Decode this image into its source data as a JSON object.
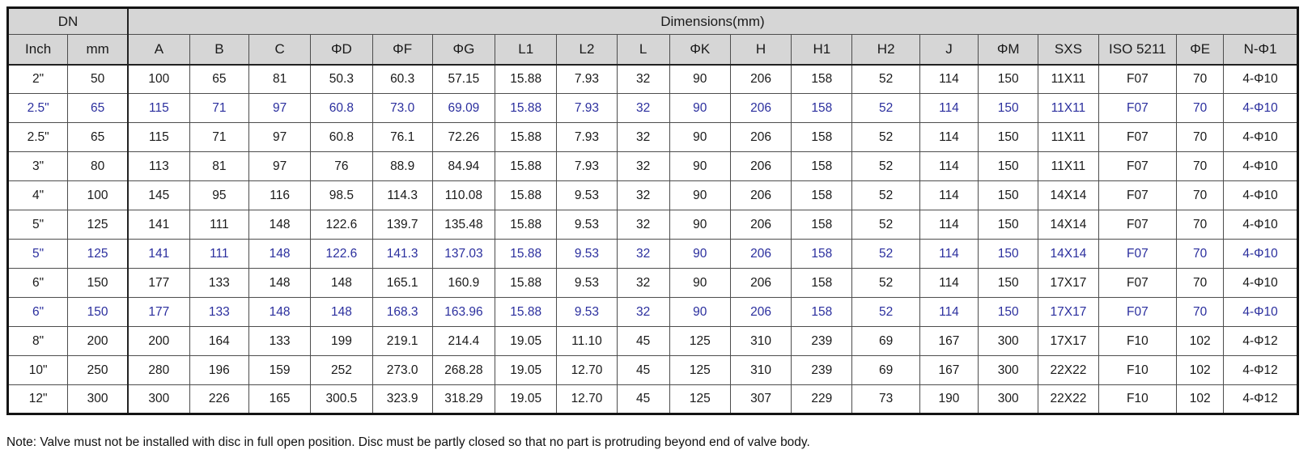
{
  "table": {
    "header_groups": [
      {
        "label": "DN",
        "colspan": 2
      },
      {
        "label": "Dimensions(mm)",
        "colspan": 19
      }
    ],
    "columns": [
      "Inch",
      "mm",
      "A",
      "B",
      "C",
      "ΦD",
      "ΦF",
      "ΦG",
      "L1",
      "L2",
      "L",
      "ΦK",
      "H",
      "H1",
      "H2",
      "J",
      "ΦM",
      "SXS",
      "ISO 5211",
      "ΦE",
      "N-Φ1"
    ],
    "rows": [
      {
        "highlight": false,
        "cells": [
          "2\"",
          "50",
          "100",
          "65",
          "81",
          "50.3",
          "60.3",
          "57.15",
          "15.88",
          "7.93",
          "32",
          "90",
          "206",
          "158",
          "52",
          "114",
          "150",
          "11X11",
          "F07",
          "70",
          "4-Φ10"
        ]
      },
      {
        "highlight": true,
        "cells": [
          "2.5\"",
          "65",
          "115",
          "71",
          "97",
          "60.8",
          "73.0",
          "69.09",
          "15.88",
          "7.93",
          "32",
          "90",
          "206",
          "158",
          "52",
          "114",
          "150",
          "11X11",
          "F07",
          "70",
          "4-Φ10"
        ]
      },
      {
        "highlight": false,
        "cells": [
          "2.5\"",
          "65",
          "115",
          "71",
          "97",
          "60.8",
          "76.1",
          "72.26",
          "15.88",
          "7.93",
          "32",
          "90",
          "206",
          "158",
          "52",
          "114",
          "150",
          "11X11",
          "F07",
          "70",
          "4-Φ10"
        ]
      },
      {
        "highlight": false,
        "cells": [
          "3\"",
          "80",
          "113",
          "81",
          "97",
          "76",
          "88.9",
          "84.94",
          "15.88",
          "7.93",
          "32",
          "90",
          "206",
          "158",
          "52",
          "114",
          "150",
          "11X11",
          "F07",
          "70",
          "4-Φ10"
        ]
      },
      {
        "highlight": false,
        "cells": [
          "4\"",
          "100",
          "145",
          "95",
          "116",
          "98.5",
          "114.3",
          "110.08",
          "15.88",
          "9.53",
          "32",
          "90",
          "206",
          "158",
          "52",
          "114",
          "150",
          "14X14",
          "F07",
          "70",
          "4-Φ10"
        ]
      },
      {
        "highlight": false,
        "cells": [
          "5\"",
          "125",
          "141",
          "111",
          "148",
          "122.6",
          "139.7",
          "135.48",
          "15.88",
          "9.53",
          "32",
          "90",
          "206",
          "158",
          "52",
          "114",
          "150",
          "14X14",
          "F07",
          "70",
          "4-Φ10"
        ]
      },
      {
        "highlight": true,
        "cells": [
          "5\"",
          "125",
          "141",
          "111",
          "148",
          "122.6",
          "141.3",
          "137.03",
          "15.88",
          "9.53",
          "32",
          "90",
          "206",
          "158",
          "52",
          "114",
          "150",
          "14X14",
          "F07",
          "70",
          "4-Φ10"
        ]
      },
      {
        "highlight": false,
        "cells": [
          "6\"",
          "150",
          "177",
          "133",
          "148",
          "148",
          "165.1",
          "160.9",
          "15.88",
          "9.53",
          "32",
          "90",
          "206",
          "158",
          "52",
          "114",
          "150",
          "17X17",
          "F07",
          "70",
          "4-Φ10"
        ]
      },
      {
        "highlight": true,
        "cells": [
          "6\"",
          "150",
          "177",
          "133",
          "148",
          "148",
          "168.3",
          "163.96",
          "15.88",
          "9.53",
          "32",
          "90",
          "206",
          "158",
          "52",
          "114",
          "150",
          "17X17",
          "F07",
          "70",
          "4-Φ10"
        ]
      },
      {
        "highlight": false,
        "cells": [
          "8\"",
          "200",
          "200",
          "164",
          "133",
          "199",
          "219.1",
          "214.4",
          "19.05",
          "11.10",
          "45",
          "125",
          "310",
          "239",
          "69",
          "167",
          "300",
          "17X17",
          "F10",
          "102",
          "4-Φ12"
        ]
      },
      {
        "highlight": false,
        "cells": [
          "10\"",
          "250",
          "280",
          "196",
          "159",
          "252",
          "273.0",
          "268.28",
          "19.05",
          "12.70",
          "45",
          "125",
          "310",
          "239",
          "69",
          "167",
          "300",
          "22X22",
          "F10",
          "102",
          "4-Φ12"
        ]
      },
      {
        "highlight": false,
        "cells": [
          "12\"",
          "300",
          "300",
          "226",
          "165",
          "300.5",
          "323.9",
          "318.29",
          "19.05",
          "12.70",
          "45",
          "125",
          "307",
          "229",
          "73",
          "190",
          "300",
          "22X22",
          "F10",
          "102",
          "4-Φ12"
        ]
      }
    ]
  },
  "note": "Note: Valve must not be installed with disc in full open position. Disc must be partly closed so that no part is protruding beyond end of valve body.",
  "colors": {
    "highlight_text": "#2b2f9e",
    "text": "#1a1a1a",
    "header_bg": "#d6d6d6",
    "border": "#4d4d4d"
  }
}
